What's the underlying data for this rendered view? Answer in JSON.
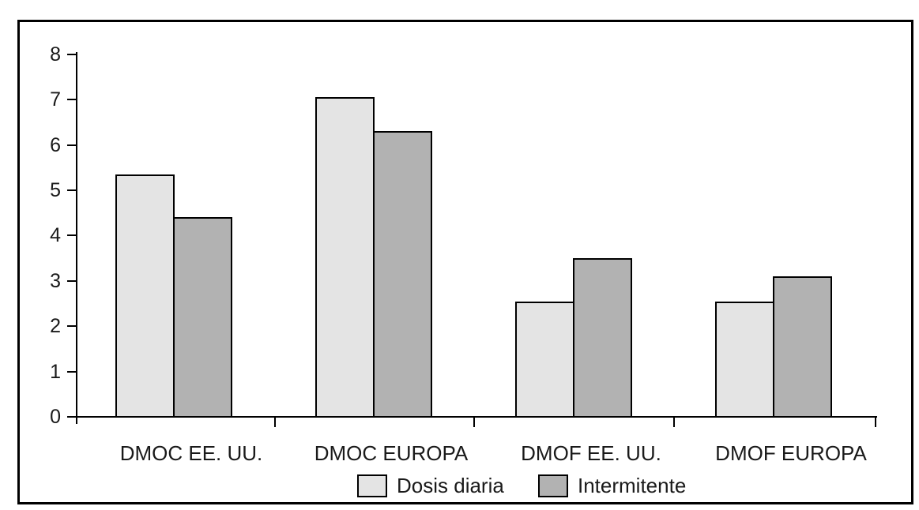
{
  "chart_data": {
    "type": "bar",
    "title": "",
    "xlabel": "",
    "ylabel": "",
    "categories": [
      "DMOC EE. UU.",
      "DMOC EUROPA",
      "DMOF EE. UU.",
      "DMOF EUROPA"
    ],
    "series": [
      {
        "name": "Dosis diaria",
        "color": "#e4e4e4",
        "values": [
          5.35,
          7.05,
          2.55,
          2.55
        ]
      },
      {
        "name": "Intermitente",
        "color": "#b2b2b2",
        "values": [
          4.4,
          6.3,
          3.5,
          3.1
        ]
      }
    ],
    "ylim": [
      0,
      8
    ],
    "yticks": [
      0,
      1,
      2,
      3,
      4,
      5,
      6,
      7,
      8
    ],
    "grid": false,
    "legend_position": "bottom",
    "bar_border_color": "#000000",
    "frame_color": "#000000",
    "background_color": "#ffffff"
  }
}
